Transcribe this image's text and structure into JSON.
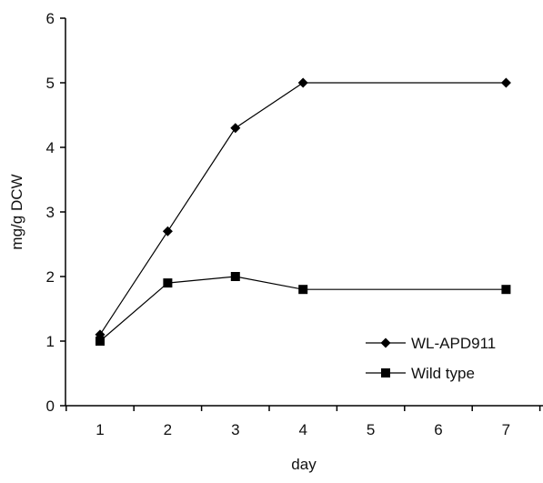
{
  "chart_data": {
    "type": "line",
    "title": "",
    "xlabel": "day",
    "ylabel": "mg/g DCW",
    "categories": [
      "1",
      "2",
      "3",
      "4",
      "5",
      "6",
      "7"
    ],
    "ylim": [
      0,
      6
    ],
    "yticks": [
      0,
      1,
      2,
      3,
      4,
      5,
      6
    ],
    "grid": false,
    "legend_position": "bottom-right",
    "series": [
      {
        "name": "WL-APD911",
        "marker": "diamond",
        "color": "#000000",
        "points": [
          {
            "x": "1",
            "y": 1.1
          },
          {
            "x": "2",
            "y": 2.7
          },
          {
            "x": "3",
            "y": 4.3
          },
          {
            "x": "4",
            "y": 5.0
          },
          {
            "x": "7",
            "y": 5.0
          }
        ]
      },
      {
        "name": "Wild type",
        "marker": "square",
        "color": "#000000",
        "points": [
          {
            "x": "1",
            "y": 1.0
          },
          {
            "x": "2",
            "y": 1.9
          },
          {
            "x": "3",
            "y": 2.0
          },
          {
            "x": "4",
            "y": 1.8
          },
          {
            "x": "7",
            "y": 1.8
          }
        ]
      }
    ]
  }
}
